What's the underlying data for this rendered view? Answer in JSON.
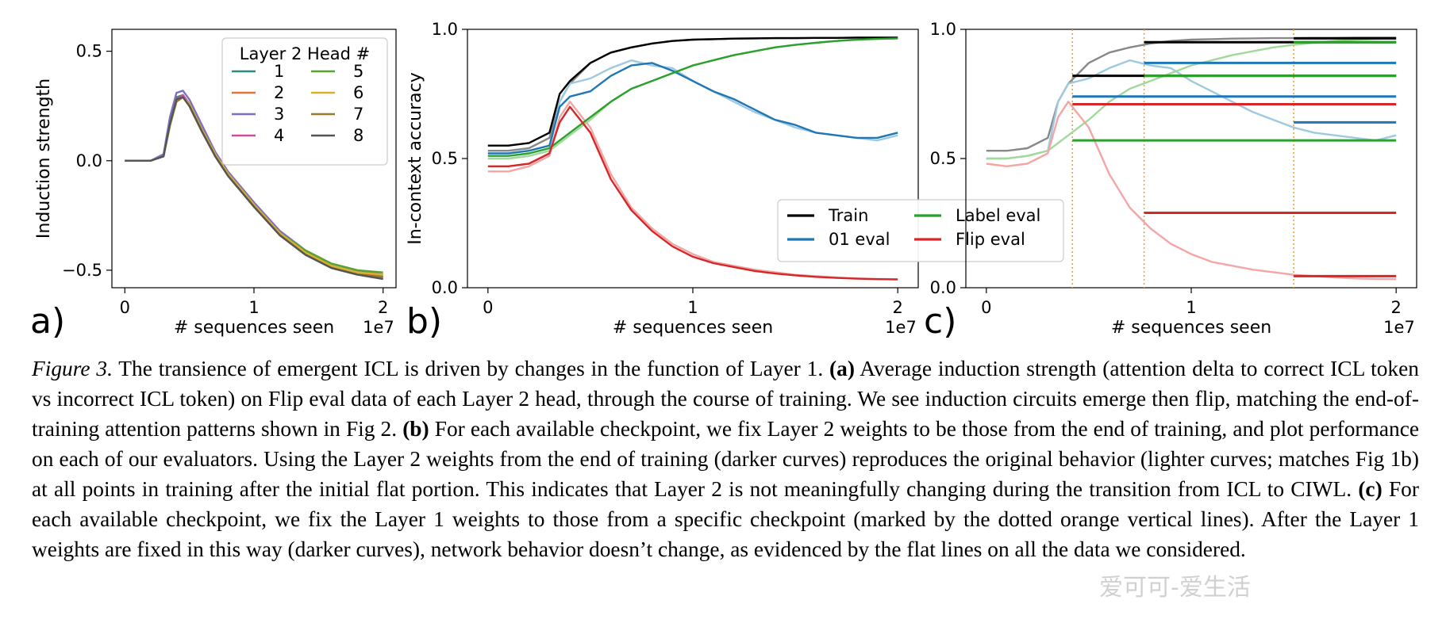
{
  "figure": {
    "panels": [
      {
        "id": "a",
        "letter": "a)",
        "xlabel": "# sequences seen",
        "ylabel": "Induction strength",
        "offset_text": "1e7",
        "xticks": [
          "0",
          "1",
          "2"
        ],
        "yticks": [
          "0.5",
          "0.0",
          "−0.5"
        ],
        "legend_title": "Layer 2 Head #"
      },
      {
        "id": "b",
        "letter": "b)",
        "xlabel": "# sequences seen",
        "ylabel": "In-context accuracy",
        "offset_text": "1e7",
        "xticks": [
          "0",
          "1",
          "2"
        ],
        "yticks": [
          "1.0",
          "0.5",
          "0.0"
        ]
      },
      {
        "id": "c",
        "letter": "c)",
        "xlabel": "# sequences seen",
        "ylabel": "",
        "offset_text": "1e7",
        "xticks": [
          "0",
          "1",
          "2"
        ],
        "yticks": [
          "1.0",
          "0.5",
          "0.0"
        ]
      }
    ],
    "legend_b": [
      {
        "name": "Train",
        "color": "#000000"
      },
      {
        "name": "Label eval",
        "color": "#2ca02c"
      },
      {
        "name": "01 eval",
        "color": "#1f77b4"
      },
      {
        "name": "Flip eval",
        "color": "#d62728"
      }
    ]
  },
  "chart_data": [
    {
      "type": "line",
      "panel": "a",
      "xlabel": "# sequences seen",
      "ylabel": "Induction strength",
      "x_scale_note": "1e7",
      "xlim": [
        -0.1,
        2.1
      ],
      "ylim": [
        -0.58,
        0.6
      ],
      "legend_title": "Layer 2 Head #",
      "legend_position": "upper right",
      "x": [
        0,
        0.2,
        0.3,
        0.35,
        0.4,
        0.45,
        0.5,
        0.6,
        0.7,
        0.8,
        1.0,
        1.2,
        1.4,
        1.6,
        1.8,
        2.0
      ],
      "series": [
        {
          "name": "1",
          "color": "#2a8c7a",
          "values": [
            0,
            0.0,
            0.02,
            0.18,
            0.29,
            0.3,
            0.26,
            0.14,
            0.03,
            -0.06,
            -0.2,
            -0.33,
            -0.42,
            -0.48,
            -0.51,
            -0.53
          ]
        },
        {
          "name": "2",
          "color": "#e0763a",
          "values": [
            0,
            0.0,
            0.02,
            0.17,
            0.28,
            0.29,
            0.25,
            0.13,
            0.02,
            -0.07,
            -0.21,
            -0.34,
            -0.43,
            -0.48,
            -0.51,
            -0.53
          ]
        },
        {
          "name": "3",
          "color": "#7d6fc4",
          "values": [
            0,
            0.0,
            0.03,
            0.2,
            0.31,
            0.32,
            0.28,
            0.16,
            0.04,
            -0.05,
            -0.19,
            -0.32,
            -0.41,
            -0.47,
            -0.5,
            -0.52
          ]
        },
        {
          "name": "4",
          "color": "#cc4aa0",
          "values": [
            0,
            0.0,
            0.02,
            0.17,
            0.28,
            0.3,
            0.26,
            0.14,
            0.03,
            -0.06,
            -0.2,
            -0.34,
            -0.43,
            -0.49,
            -0.52,
            -0.54
          ]
        },
        {
          "name": "5",
          "color": "#5aa32a",
          "values": [
            0,
            0.0,
            0.02,
            0.16,
            0.27,
            0.29,
            0.25,
            0.13,
            0.02,
            -0.07,
            -0.21,
            -0.33,
            -0.41,
            -0.47,
            -0.5,
            -0.51
          ]
        },
        {
          "name": "6",
          "color": "#d8b12a",
          "values": [
            0,
            0.0,
            0.02,
            0.17,
            0.28,
            0.29,
            0.26,
            0.14,
            0.03,
            -0.06,
            -0.2,
            -0.33,
            -0.42,
            -0.48,
            -0.51,
            -0.52
          ]
        },
        {
          "name": "7",
          "color": "#9a7a2a",
          "values": [
            0,
            0.0,
            0.02,
            0.17,
            0.27,
            0.29,
            0.25,
            0.13,
            0.02,
            -0.07,
            -0.21,
            -0.34,
            -0.43,
            -0.49,
            -0.52,
            -0.53
          ]
        },
        {
          "name": "8",
          "color": "#555555",
          "values": [
            0,
            0.0,
            0.02,
            0.17,
            0.28,
            0.29,
            0.25,
            0.13,
            0.02,
            -0.07,
            -0.21,
            -0.34,
            -0.43,
            -0.49,
            -0.52,
            -0.54
          ]
        }
      ]
    },
    {
      "type": "line",
      "panel": "b",
      "xlabel": "# sequences seen",
      "ylabel": "In-context accuracy",
      "x_scale_note": "1e7",
      "xlim": [
        -0.1,
        2.1
      ],
      "ylim": [
        0,
        1.0
      ],
      "legend_position": "lower right",
      "x": [
        0,
        0.1,
        0.2,
        0.3,
        0.35,
        0.4,
        0.5,
        0.6,
        0.7,
        0.8,
        0.9,
        1.0,
        1.1,
        1.2,
        1.3,
        1.4,
        1.5,
        1.6,
        1.7,
        1.8,
        1.9,
        2.0
      ],
      "series": [
        {
          "name": "Train",
          "color": "#000000",
          "values": [
            0.55,
            0.55,
            0.56,
            0.6,
            0.75,
            0.8,
            0.87,
            0.91,
            0.93,
            0.945,
            0.955,
            0.96,
            0.962,
            0.964,
            0.965,
            0.966,
            0.966,
            0.967,
            0.967,
            0.968,
            0.968,
            0.968
          ]
        },
        {
          "name": "Train (original)",
          "color": "#888888",
          "values": [
            0.53,
            0.53,
            0.54,
            0.58,
            0.72,
            0.79,
            0.87,
            0.91,
            0.93,
            0.945,
            0.955,
            0.96,
            0.962,
            0.964,
            0.965,
            0.966,
            0.966,
            0.967,
            0.967,
            0.968,
            0.968,
            0.968
          ]
        },
        {
          "name": "01 eval",
          "color": "#1f77b4",
          "values": [
            0.52,
            0.52,
            0.53,
            0.55,
            0.7,
            0.74,
            0.76,
            0.82,
            0.86,
            0.87,
            0.84,
            0.8,
            0.76,
            0.73,
            0.69,
            0.65,
            0.63,
            0.6,
            0.59,
            0.58,
            0.58,
            0.6
          ]
        },
        {
          "name": "01 eval (original)",
          "color": "#9ecae1",
          "values": [
            0.5,
            0.5,
            0.51,
            0.53,
            0.72,
            0.79,
            0.81,
            0.85,
            0.88,
            0.86,
            0.85,
            0.8,
            0.76,
            0.72,
            0.68,
            0.65,
            0.62,
            0.6,
            0.59,
            0.58,
            0.57,
            0.59
          ]
        },
        {
          "name": "Label eval",
          "color": "#2ca02c",
          "values": [
            0.51,
            0.51,
            0.52,
            0.54,
            0.57,
            0.6,
            0.66,
            0.72,
            0.77,
            0.8,
            0.83,
            0.86,
            0.88,
            0.9,
            0.915,
            0.93,
            0.94,
            0.948,
            0.955,
            0.96,
            0.963,
            0.965
          ]
        },
        {
          "name": "Label eval (original)",
          "color": "#a1d99b",
          "values": [
            0.5,
            0.5,
            0.51,
            0.53,
            0.56,
            0.59,
            0.65,
            0.72,
            0.77,
            0.8,
            0.83,
            0.86,
            0.88,
            0.9,
            0.915,
            0.93,
            0.94,
            0.948,
            0.955,
            0.96,
            0.963,
            0.965
          ]
        },
        {
          "name": "Flip eval",
          "color": "#d62728",
          "values": [
            0.47,
            0.47,
            0.48,
            0.52,
            0.64,
            0.7,
            0.6,
            0.42,
            0.3,
            0.22,
            0.16,
            0.12,
            0.095,
            0.08,
            0.065,
            0.055,
            0.048,
            0.042,
            0.038,
            0.035,
            0.033,
            0.032
          ]
        },
        {
          "name": "Flip eval (original)",
          "color": "#f4a6a6",
          "values": [
            0.45,
            0.45,
            0.47,
            0.51,
            0.66,
            0.72,
            0.62,
            0.44,
            0.31,
            0.23,
            0.17,
            0.13,
            0.1,
            0.085,
            0.07,
            0.06,
            0.05,
            0.045,
            0.04,
            0.036,
            0.034,
            0.033
          ]
        }
      ]
    },
    {
      "type": "line",
      "panel": "c",
      "xlabel": "# sequences seen",
      "ylabel": "",
      "x_scale_note": "1e7",
      "xlim": [
        -0.1,
        2.1
      ],
      "ylim": [
        0,
        1.0
      ],
      "checkpoint_lines_x": [
        0.42,
        0.77,
        1.5
      ],
      "checkpoint_line_color": "#e8a33a",
      "x": [
        0,
        0.1,
        0.2,
        0.3,
        0.35,
        0.4,
        0.5,
        0.6,
        0.7,
        0.8,
        0.9,
        1.0,
        1.1,
        1.2,
        1.3,
        1.4,
        1.5,
        1.6,
        1.7,
        1.8,
        1.9,
        2.0
      ],
      "series": [
        {
          "name": "Train (original)",
          "color": "#888888",
          "values": [
            0.53,
            0.53,
            0.54,
            0.58,
            0.72,
            0.79,
            0.87,
            0.91,
            0.93,
            0.945,
            0.955,
            0.96,
            0.962,
            0.964,
            0.965,
            0.966,
            0.966,
            0.967,
            0.967,
            0.968,
            0.968,
            0.968
          ]
        },
        {
          "name": "01 eval (original)",
          "color": "#9ecae1",
          "values": [
            0.5,
            0.5,
            0.51,
            0.53,
            0.72,
            0.79,
            0.81,
            0.85,
            0.88,
            0.86,
            0.85,
            0.8,
            0.76,
            0.72,
            0.68,
            0.65,
            0.62,
            0.6,
            0.59,
            0.58,
            0.57,
            0.59
          ]
        },
        {
          "name": "Label eval (original)",
          "color": "#a1d99b",
          "values": [
            0.5,
            0.5,
            0.51,
            0.53,
            0.56,
            0.59,
            0.65,
            0.72,
            0.77,
            0.8,
            0.83,
            0.86,
            0.88,
            0.9,
            0.915,
            0.93,
            0.94,
            0.948,
            0.955,
            0.96,
            0.963,
            0.965
          ]
        },
        {
          "name": "Flip eval (original)",
          "color": "#f4a6a6",
          "values": [
            0.48,
            0.47,
            0.48,
            0.52,
            0.66,
            0.72,
            0.62,
            0.44,
            0.31,
            0.23,
            0.17,
            0.13,
            0.1,
            0.085,
            0.07,
            0.06,
            0.05,
            0.045,
            0.04,
            0.036,
            0.034,
            0.033
          ]
        }
      ],
      "fixed_segments": [
        {
          "checkpoint_x": 0.42,
          "series": "Train",
          "color": "#000000",
          "y": 0.82
        },
        {
          "checkpoint_x": 0.42,
          "series": "01 eval",
          "color": "#1f77b4",
          "y": 0.74
        },
        {
          "checkpoint_x": 0.42,
          "series": "Label eval",
          "color": "#2ca02c",
          "y": 0.57
        },
        {
          "checkpoint_x": 0.42,
          "series": "Flip eval",
          "color": "#d62728",
          "y": 0.71
        },
        {
          "checkpoint_x": 0.77,
          "series": "Train",
          "color": "#000000",
          "y": 0.95
        },
        {
          "checkpoint_x": 0.77,
          "series": "01 eval",
          "color": "#1f77b4",
          "y": 0.87
        },
        {
          "checkpoint_x": 0.77,
          "series": "Label eval",
          "color": "#2ca02c",
          "y": 0.82
        },
        {
          "checkpoint_x": 0.77,
          "series": "Flip eval",
          "color": "#d62728",
          "y": 0.29
        },
        {
          "checkpoint_x": 1.5,
          "series": "Train",
          "color": "#000000",
          "y": 0.965
        },
        {
          "checkpoint_x": 1.5,
          "series": "01 eval",
          "color": "#1f77b4",
          "y": 0.64
        },
        {
          "checkpoint_x": 1.5,
          "series": "Label eval",
          "color": "#2ca02c",
          "y": 0.95
        },
        {
          "checkpoint_x": 1.5,
          "series": "Flip eval",
          "color": "#d62728",
          "y": 0.045
        }
      ]
    }
  ],
  "caption": {
    "figure_label": "Figure 3.",
    "text_1": " The transience of emergent ICL is driven by changes in the function of Layer 1. ",
    "a_label": "(a)",
    "text_a": " Average induction strength (attention delta to correct ICL token vs incorrect ICL token) on Flip eval data of each Layer 2 head, through the course of training. We see induction circuits emerge then flip, matching the end-of-training attention patterns shown in Fig 2. ",
    "b_label": "(b)",
    "text_b": " For each available checkpoint, we fix Layer 2 weights to be those from the end of training, and plot performance on each of our evaluators. Using the Layer 2 weights from the end of training (darker curves) reproduces the original behavior (lighter curves; matches Fig 1b) at all points in training after the initial flat portion. This indicates that Layer 2 is not meaningfully changing during the transition from ICL to CIWL. ",
    "c_label": "(c)",
    "text_c": " For each available checkpoint, we fix the Layer 1 weights to those from a specific checkpoint (marked by the dotted orange vertical lines). After the Layer 1 weights are fixed in this way (darker curves), network behavior doesn’t change, as evidenced by the flat lines on all the data we considered."
  },
  "watermark": "爱可可-爱生活"
}
